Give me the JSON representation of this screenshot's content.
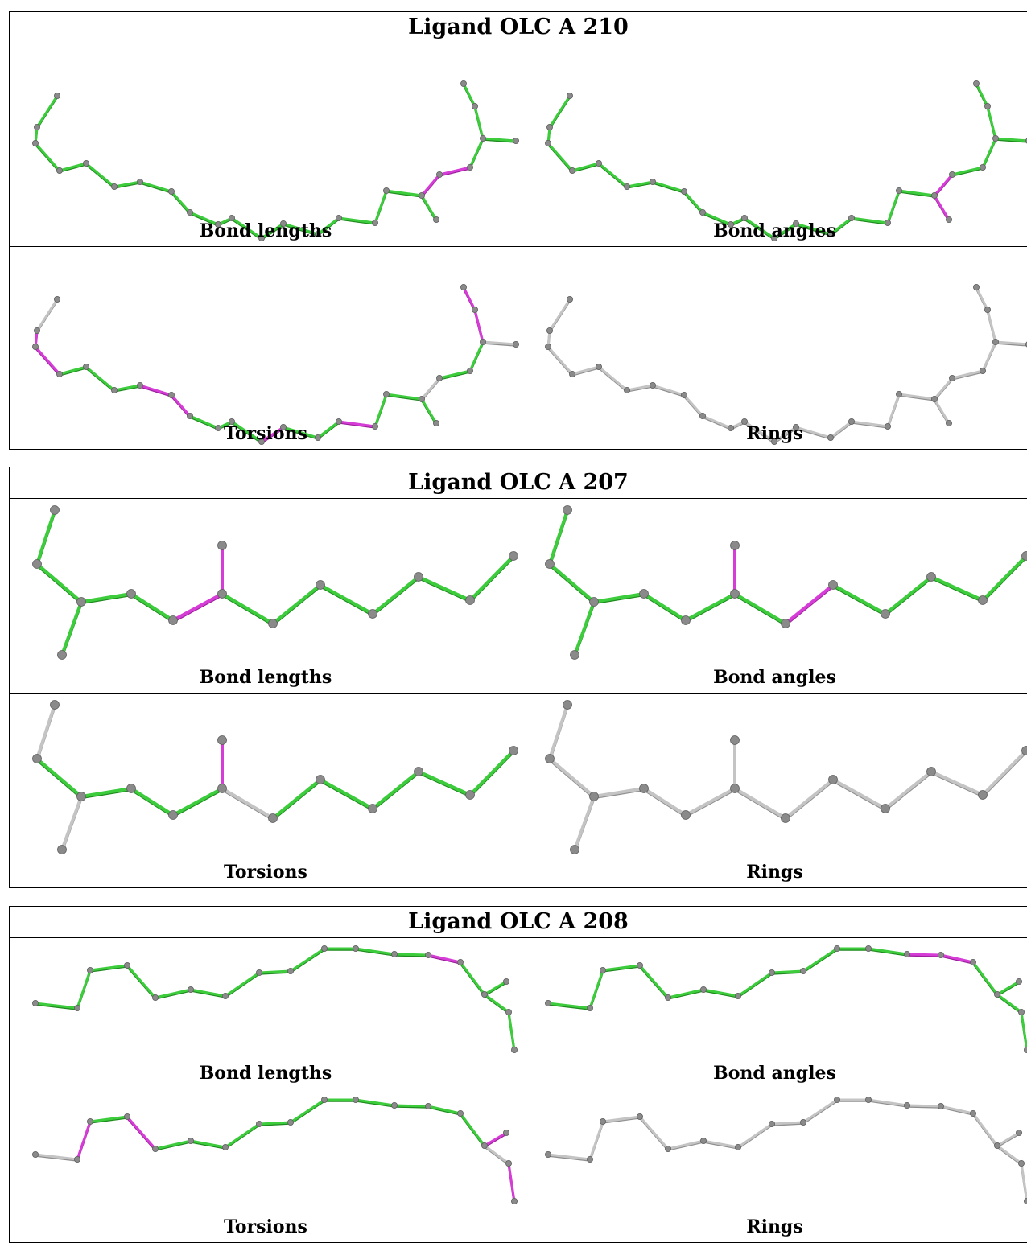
{
  "tables": [
    {
      "title": "Ligand OLC A 210",
      "panels": [
        {
          "label": "Bond lengths"
        },
        {
          "label": "Bond angles"
        },
        {
          "label": "Torsions"
        },
        {
          "label": "Rings"
        }
      ]
    },
    {
      "title": "Ligand OLC A 207",
      "panels": [
        {
          "label": "Bond lengths"
        },
        {
          "label": "Bond angles"
        },
        {
          "label": "Torsions"
        },
        {
          "label": "Rings"
        }
      ]
    },
    {
      "title": "Ligand OLC A 208",
      "panels": [
        {
          "label": "Bond lengths"
        },
        {
          "label": "Bond angles"
        },
        {
          "label": "Torsions"
        },
        {
          "label": "Rings"
        }
      ]
    }
  ],
  "colors": {
    "ok_bond": "#3ccc3c",
    "outlier_bond": "#d63cd6",
    "neutral_bond": "#c4c4c4",
    "atom": "#8a8a8a"
  }
}
